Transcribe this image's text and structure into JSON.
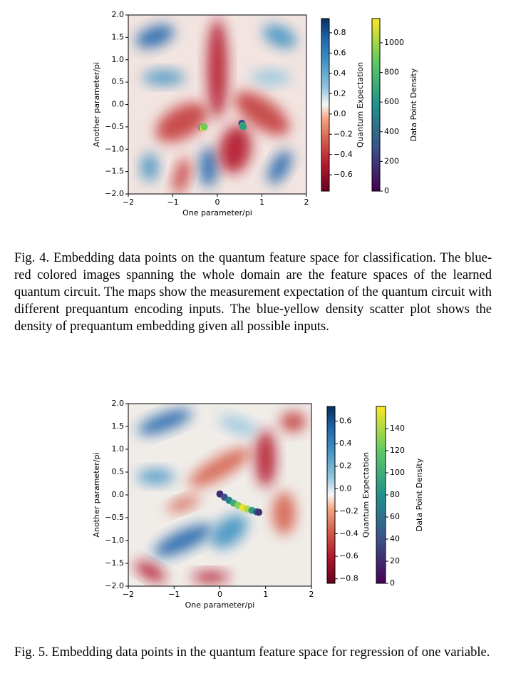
{
  "figures": [
    {
      "xlabel": "One parameter/pi",
      "ylabel": "Another parameter/pi",
      "xlim": [
        -2,
        2
      ],
      "ylim": [
        -2,
        2
      ],
      "xticks": [
        {
          "value": -2,
          "label": "−2"
        },
        {
          "value": -1,
          "label": "−1"
        },
        0,
        1,
        2
      ],
      "yticks": [
        {
          "value": -2,
          "label": "−2.0"
        },
        {
          "value": -1.5,
          "label": "−1.5"
        },
        {
          "value": -1,
          "label": "−1.0"
        },
        {
          "value": -0.5,
          "label": "−0.5"
        },
        {
          "value": 0,
          "label": "0.0"
        },
        0.5,
        {
          "value": 1,
          "label": "1.0"
        },
        1.5,
        {
          "value": 2,
          "label": "2.0"
        }
      ],
      "colorbars": [
        {
          "label": "Quantum Expectation",
          "lim": [
            -0.76,
            0.94
          ],
          "ticks": [
            {
              "value": -0.6,
              "label": "−0.6"
            },
            {
              "value": -0.4,
              "label": "−0.4"
            },
            {
              "value": -0.2,
              "label": "−0.2"
            },
            {
              "value": 0,
              "label": "0.0"
            },
            0.2,
            0.4,
            0.6,
            0.8
          ]
        },
        {
          "label": "Data Point Density",
          "lim": [
            0,
            1163
          ],
          "ticks": [
            0,
            200,
            400,
            600,
            800,
            1000
          ]
        }
      ],
      "points": {
        "x": [
          -0.35,
          -0.33,
          -0.3,
          0.55,
          0.57,
          0.58
        ],
        "y": [
          -0.52,
          -0.52,
          -0.5,
          -0.42,
          -0.47,
          -0.5
        ],
        "density": [
          300,
          1150,
          900,
          250,
          700,
          650
        ]
      },
      "caption": "Fig. 4.  Embedding data points on the quantum feature space for classification. The blue-red colored images spanning the whole domain are the feature spaces of the learned quantum circuit. The maps show the measurement expectation of the quantum circuit with different prequantum encoding inputs. The blue-yellow density scatter plot shows the density of prequantum embedding given all possible inputs."
    },
    {
      "xlabel": "One parameter/pi",
      "ylabel": "Another parameter/pi",
      "xlim": [
        -2,
        2
      ],
      "ylim": [
        -2,
        2
      ],
      "xticks": [
        {
          "value": -2,
          "label": "−2"
        },
        {
          "value": -1,
          "label": "−1"
        },
        0,
        1,
        2
      ],
      "yticks": [
        {
          "value": -2,
          "label": "−2.0"
        },
        {
          "value": -1.5,
          "label": "−1.5"
        },
        {
          "value": -1,
          "label": "−1.0"
        },
        {
          "value": -0.5,
          "label": "−0.5"
        },
        {
          "value": 0,
          "label": "0.0"
        },
        0.5,
        {
          "value": 1,
          "label": "1.0"
        },
        1.5,
        {
          "value": 2,
          "label": "2.0"
        }
      ],
      "colorbars": [
        {
          "label": "Quantum Expectation",
          "lim": [
            -0.84,
            0.73
          ],
          "ticks": [
            {
              "value": -0.8,
              "label": "−0.8"
            },
            {
              "value": -0.6,
              "label": "−0.6"
            },
            {
              "value": -0.4,
              "label": "−0.4"
            },
            {
              "value": -0.2,
              "label": "−0.2"
            },
            {
              "value": 0,
              "label": "0.0"
            },
            0.2,
            0.4,
            0.6
          ]
        },
        {
          "label": "Data Point Density",
          "lim": [
            0,
            160
          ],
          "ticks": [
            0,
            20,
            40,
            60,
            80,
            100,
            120,
            140
          ]
        }
      ],
      "points": {
        "x": [
          0,
          0.1,
          0.2,
          0.3,
          0.4,
          0.5,
          0.6,
          0.7,
          0.8,
          0.85
        ],
        "y": [
          0.02,
          -0.05,
          -0.12,
          -0.18,
          -0.23,
          -0.28,
          -0.31,
          -0.34,
          -0.37,
          -0.38
        ],
        "density": [
          20,
          40,
          70,
          100,
          130,
          155,
          140,
          90,
          50,
          25
        ]
      },
      "caption": "Fig. 5.  Embedding data points in the quantum feature space for regression of one variable."
    }
  ]
}
